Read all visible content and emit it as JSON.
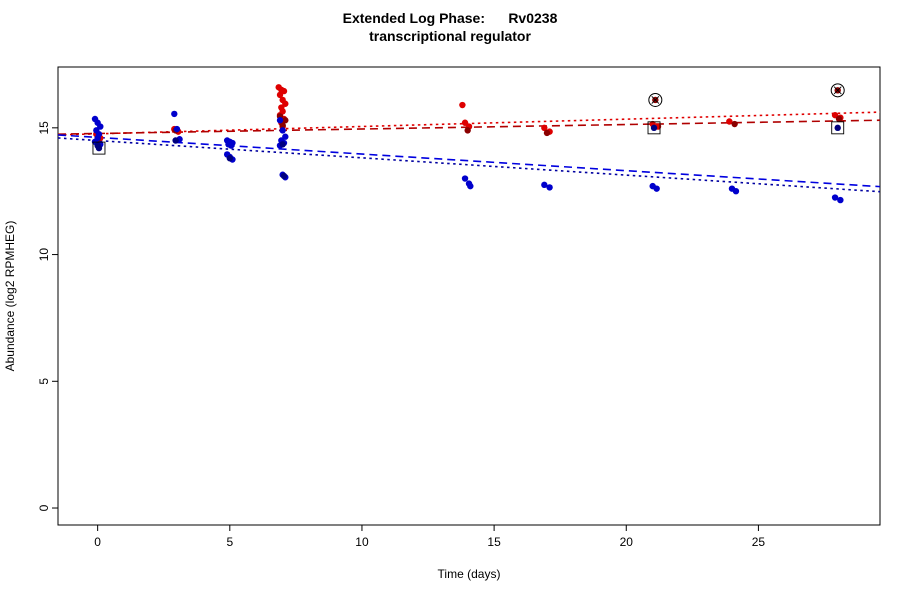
{
  "title": {
    "line1": "Extended Log Phase:      Rv0238",
    "line2": "transcriptional regulator"
  },
  "chart_data": {
    "type": "scatter",
    "title": "Extended Log Phase: Rv0238 transcriptional regulator",
    "xlabel": "Time  (days)",
    "ylabel": "Abundance  (log2 RPMHEG)",
    "x_ticks": [
      0,
      5,
      10,
      15,
      20,
      25
    ],
    "y_ticks": [
      0,
      5,
      10,
      15
    ],
    "x_range": [
      -1.5,
      29.6
    ],
    "y_range": [
      -0.67,
      17.4
    ],
    "grid": false,
    "legend": "none",
    "series": [
      {
        "name": "red-condition-rep1",
        "color": "#DE0000",
        "points": [
          [
            -0.05,
            14.75
          ],
          [
            0.1,
            14.6
          ],
          [
            2.9,
            14.95
          ],
          [
            3.05,
            14.85
          ],
          [
            6.85,
            16.6
          ],
          [
            6.95,
            16.5
          ],
          [
            7.05,
            16.45
          ],
          [
            6.9,
            16.3
          ],
          [
            7.0,
            16.1
          ],
          [
            7.1,
            15.95
          ],
          [
            6.95,
            15.8
          ],
          [
            7.0,
            15.65
          ],
          [
            6.9,
            15.5
          ],
          [
            7.05,
            15.35
          ],
          [
            6.95,
            15.2
          ],
          [
            7.0,
            15.05
          ],
          [
            13.8,
            15.9
          ],
          [
            13.9,
            15.2
          ],
          [
            14.05,
            15.05
          ],
          [
            16.9,
            15.0
          ],
          [
            17.1,
            14.85
          ],
          [
            21.0,
            15.15
          ],
          [
            21.2,
            15.05
          ],
          [
            23.9,
            15.25
          ],
          [
            27.9,
            15.5
          ],
          [
            28.1,
            15.4
          ]
        ]
      },
      {
        "name": "red-condition-rep2",
        "color": "#8B0000",
        "points": [
          [
            0.0,
            14.55
          ],
          [
            2.95,
            14.9
          ],
          [
            6.9,
            15.45
          ],
          [
            7.1,
            15.3
          ],
          [
            7.0,
            15.1
          ],
          [
            14.0,
            14.9
          ],
          [
            17.0,
            14.8
          ],
          [
            21.1,
            16.1
          ],
          [
            24.1,
            15.15
          ],
          [
            28.0,
            16.48
          ],
          [
            28.05,
            15.35
          ]
        ]
      },
      {
        "name": "blue-condition-rep1",
        "color": "#0000CC",
        "points": [
          [
            -0.1,
            15.35
          ],
          [
            0.0,
            15.2
          ],
          [
            0.1,
            15.05
          ],
          [
            -0.05,
            14.9
          ],
          [
            0.05,
            14.75
          ],
          [
            0.0,
            14.6
          ],
          [
            -0.1,
            14.45
          ],
          [
            0.1,
            14.35
          ],
          [
            2.9,
            15.55
          ],
          [
            3.0,
            14.95
          ],
          [
            3.1,
            14.55
          ],
          [
            4.9,
            14.5
          ],
          [
            5.0,
            14.45
          ],
          [
            5.1,
            14.4
          ],
          [
            4.95,
            14.35
          ],
          [
            5.05,
            14.3
          ],
          [
            4.9,
            13.95
          ],
          [
            5.0,
            13.85
          ],
          [
            5.1,
            13.75
          ],
          [
            6.9,
            15.3
          ],
          [
            7.0,
            14.9
          ],
          [
            7.1,
            14.65
          ],
          [
            6.95,
            14.5
          ],
          [
            7.05,
            14.4
          ],
          [
            6.9,
            14.3
          ],
          [
            7.0,
            13.15
          ],
          [
            7.1,
            13.05
          ],
          [
            13.9,
            13.0
          ],
          [
            14.05,
            12.8
          ],
          [
            14.1,
            12.7
          ],
          [
            16.9,
            12.75
          ],
          [
            17.1,
            12.65
          ],
          [
            21.0,
            12.7
          ],
          [
            21.15,
            12.6
          ],
          [
            24.0,
            12.6
          ],
          [
            24.15,
            12.5
          ],
          [
            27.9,
            12.25
          ],
          [
            28.1,
            12.15
          ]
        ]
      },
      {
        "name": "blue-condition-rep2",
        "color": "#000080",
        "points": [
          [
            0.0,
            14.3
          ],
          [
            0.05,
            14.2
          ],
          [
            2.95,
            14.5
          ],
          [
            5.0,
            13.8
          ],
          [
            7.0,
            14.35
          ],
          [
            7.05,
            13.1
          ],
          [
            21.05,
            15.0
          ],
          [
            28.0,
            15.0
          ]
        ]
      }
    ],
    "trend_lines": [
      {
        "name": "red-fit-dotted",
        "color": "#E00000",
        "style": "dotted",
        "x": [
          -1.5,
          29.6
        ],
        "y": [
          14.72,
          15.62
        ]
      },
      {
        "name": "red-fit-dashed",
        "color": "#B00000",
        "style": "dashed",
        "x": [
          -1.5,
          29.6
        ],
        "y": [
          14.75,
          15.3
        ]
      },
      {
        "name": "blue-fit-dashed",
        "color": "#0000E0",
        "style": "dashed",
        "x": [
          -1.5,
          29.6
        ],
        "y": [
          14.72,
          12.68
        ]
      },
      {
        "name": "blue-fit-dotted",
        "color": "#0000A0",
        "style": "dotted",
        "x": [
          -1.5,
          29.6
        ],
        "y": [
          14.6,
          12.48
        ]
      }
    ],
    "flagged_points": [
      {
        "x": 0.05,
        "y": 14.2,
        "marker": "square"
      },
      {
        "x": 21.1,
        "y": 16.1,
        "marker": "circle-cross"
      },
      {
        "x": 21.05,
        "y": 15.0,
        "marker": "square"
      },
      {
        "x": 28.0,
        "y": 16.48,
        "marker": "circle-cross"
      },
      {
        "x": 28.0,
        "y": 15.0,
        "marker": "square"
      }
    ],
    "axis_color": "#000000",
    "background": "#ffffff"
  }
}
